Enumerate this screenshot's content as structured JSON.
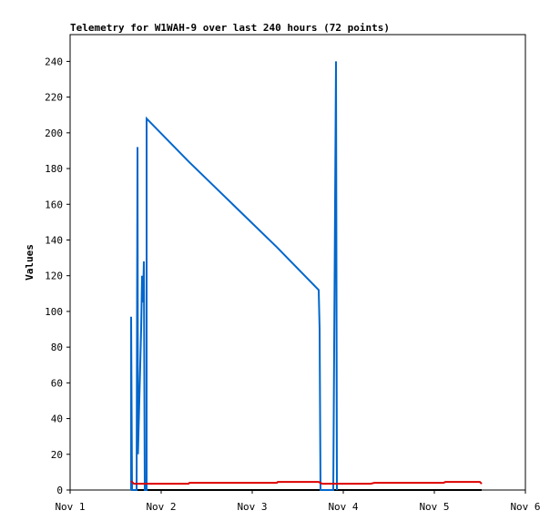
{
  "chart_data": {
    "type": "line",
    "title": "Telemetry for W1WAH-9 over last 240 hours (72 points)",
    "y_label": "Values",
    "xlim": [
      0,
      5
    ],
    "xticks": [
      {
        "value": 0,
        "label": "Nov 1"
      },
      {
        "value": 1,
        "label": "Nov 2"
      },
      {
        "value": 2,
        "label": "Nov 3"
      },
      {
        "value": 3,
        "label": "Nov 4"
      },
      {
        "value": 4,
        "label": "Nov 5"
      },
      {
        "value": 5,
        "label": "Nov 6"
      }
    ],
    "ylim": [
      0,
      255
    ],
    "yticks": [
      0,
      20,
      40,
      60,
      80,
      100,
      120,
      140,
      160,
      180,
      200,
      220,
      240
    ],
    "series": [
      {
        "color": "#000000",
        "x": [
          0.67,
          4.52
        ],
        "values": [
          0,
          0
        ]
      },
      {
        "color": "#0066cc",
        "x": [
          0.67,
          0.67,
          0.68,
          0.73,
          0.74,
          0.745,
          0.76,
          0.78,
          0.79,
          0.8,
          0.81,
          0.82,
          0.84,
          0.84,
          1.3,
          2.27,
          2.73,
          2.74,
          2.75,
          2.89,
          2.92,
          2.93
        ],
        "values": [
          0,
          97,
          0,
          0,
          192,
          20,
          50,
          90,
          120,
          105,
          128,
          0,
          0,
          208,
          184,
          136,
          112,
          90,
          0,
          0,
          240,
          0
        ]
      },
      {
        "color": "#dd0000",
        "x": [
          0.67,
          0.7,
          1.3,
          1.31,
          2.27,
          2.28,
          2.73,
          2.77,
          2.93,
          3.3,
          3.34,
          4.1,
          4.12,
          4.5,
          4.52
        ],
        "values": [
          5,
          3.5,
          3.5,
          4,
          4,
          4.5,
          4.5,
          3.5,
          3.5,
          3.5,
          4,
          4,
          4.5,
          4.5,
          3.5
        ]
      }
    ]
  }
}
